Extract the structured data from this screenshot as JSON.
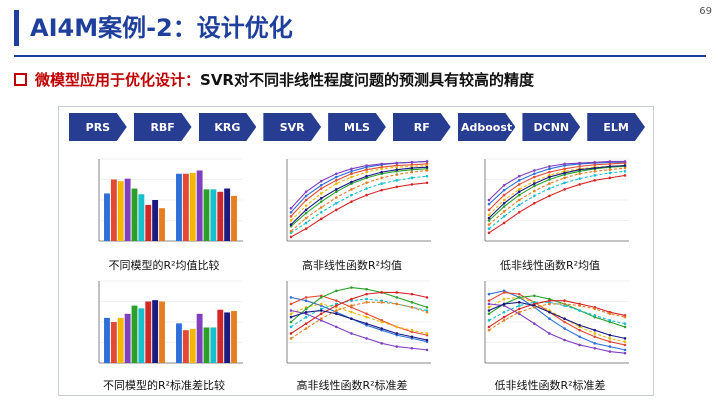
{
  "slide": {
    "title": "AI4M案例-2：设计优化",
    "page_number": "69",
    "subtitle_red": "微模型应用于优化设计：",
    "subtitle_black": "SVR对不同非线性程度问题的预测具有较高的精度"
  },
  "models": [
    "PRS",
    "RBF",
    "KRG",
    "SVR",
    "MLS",
    "RF",
    "Adboost",
    "DCNN",
    "ELM"
  ],
  "captions": {
    "bar_mean": "不同模型的R²均值比较",
    "line_high_mean": "高非线性函数R²均值",
    "line_low_mean": "低非线性函数R²均值",
    "bar_std": "不同模型的R²标准差比较",
    "line_high_std": "高非线性函数R²标准差",
    "line_low_std": "低非线性函数R²标准差"
  },
  "colors": {
    "brand_blue": "#1f3f9c",
    "button_blue": "#263d92",
    "accent_red": "#c00000",
    "series": [
      "#2e6fd8",
      "#e24a33",
      "#f2b705",
      "#7f3fbf",
      "#2ca02c",
      "#17becf",
      "#d62728",
      "#1a1a80",
      "#e67e22"
    ]
  },
  "chart_data": [
    {
      "type": "bar",
      "categories": [
        "",
        ""
      ],
      "ylim": [
        0,
        1
      ],
      "series": [
        {
          "values": [
            0.58,
            0.82
          ]
        },
        {
          "values": [
            0.75,
            0.82
          ]
        },
        {
          "values": [
            0.73,
            0.83
          ]
        },
        {
          "values": [
            0.76,
            0.86
          ]
        },
        {
          "values": [
            0.64,
            0.63
          ]
        },
        {
          "values": [
            0.57,
            0.63
          ]
        },
        {
          "values": [
            0.44,
            0.6
          ]
        },
        {
          "values": [
            0.5,
            0.64
          ]
        },
        {
          "values": [
            0.4,
            0.55
          ]
        }
      ]
    },
    {
      "type": "line",
      "x": [
        1,
        2,
        3,
        4,
        5,
        6,
        7,
        8,
        9,
        10
      ],
      "ylim": [
        0,
        1
      ],
      "series": [
        {
          "values": [
            0.35,
            0.55,
            0.68,
            0.78,
            0.85,
            0.9,
            0.93,
            0.95,
            0.96,
            0.97
          ]
        },
        {
          "values": [
            0.3,
            0.5,
            0.64,
            0.74,
            0.82,
            0.87,
            0.9,
            0.92,
            0.93,
            0.94
          ]
        },
        {
          "values": [
            0.25,
            0.43,
            0.58,
            0.7,
            0.78,
            0.84,
            0.88,
            0.9,
            0.91,
            0.92
          ]
        },
        {
          "values": [
            0.4,
            0.6,
            0.73,
            0.82,
            0.88,
            0.92,
            0.94,
            0.95,
            0.96,
            0.97
          ]
        },
        {
          "values": [
            0.18,
            0.34,
            0.48,
            0.6,
            0.7,
            0.77,
            0.82,
            0.85,
            0.87,
            0.88
          ]
        },
        {
          "values": [
            0.1,
            0.22,
            0.35,
            0.46,
            0.56,
            0.64,
            0.7,
            0.74,
            0.77,
            0.79
          ]
        },
        {
          "values": [
            0.05,
            0.15,
            0.27,
            0.38,
            0.48,
            0.56,
            0.62,
            0.66,
            0.69,
            0.71
          ]
        },
        {
          "values": [
            0.2,
            0.38,
            0.52,
            0.63,
            0.72,
            0.79,
            0.84,
            0.87,
            0.89,
            0.9
          ]
        },
        {
          "values": [
            0.12,
            0.28,
            0.41,
            0.53,
            0.63,
            0.71,
            0.77,
            0.81,
            0.84,
            0.86
          ]
        }
      ]
    },
    {
      "type": "line",
      "x": [
        1,
        2,
        3,
        4,
        5,
        6,
        7,
        8,
        9,
        10
      ],
      "ylim": [
        0,
        1
      ],
      "series": [
        {
          "values": [
            0.45,
            0.62,
            0.74,
            0.82,
            0.88,
            0.92,
            0.94,
            0.95,
            0.96,
            0.96
          ]
        },
        {
          "values": [
            0.38,
            0.56,
            0.69,
            0.78,
            0.84,
            0.88,
            0.91,
            0.93,
            0.94,
            0.95
          ]
        },
        {
          "values": [
            0.32,
            0.5,
            0.63,
            0.73,
            0.8,
            0.85,
            0.88,
            0.9,
            0.91,
            0.92
          ]
        },
        {
          "values": [
            0.5,
            0.68,
            0.79,
            0.86,
            0.91,
            0.94,
            0.95,
            0.96,
            0.97,
            0.97
          ]
        },
        {
          "values": [
            0.25,
            0.42,
            0.56,
            0.67,
            0.75,
            0.81,
            0.85,
            0.88,
            0.9,
            0.91
          ]
        },
        {
          "values": [
            0.15,
            0.3,
            0.44,
            0.55,
            0.64,
            0.71,
            0.76,
            0.8,
            0.83,
            0.85
          ]
        },
        {
          "values": [
            0.1,
            0.22,
            0.35,
            0.46,
            0.55,
            0.63,
            0.69,
            0.74,
            0.77,
            0.8
          ]
        },
        {
          "values": [
            0.28,
            0.46,
            0.6,
            0.7,
            0.78,
            0.83,
            0.87,
            0.89,
            0.91,
            0.92
          ]
        },
        {
          "values": [
            0.2,
            0.36,
            0.5,
            0.61,
            0.7,
            0.77,
            0.82,
            0.85,
            0.87,
            0.89
          ]
        }
      ]
    },
    {
      "type": "bar",
      "categories": [
        "",
        ""
      ],
      "ylim": [
        0,
        0.6
      ],
      "series": [
        {
          "values": [
            0.33,
            0.29
          ]
        },
        {
          "values": [
            0.3,
            0.24
          ]
        },
        {
          "values": [
            0.33,
            0.25
          ]
        },
        {
          "values": [
            0.36,
            0.36
          ]
        },
        {
          "values": [
            0.42,
            0.26
          ]
        },
        {
          "values": [
            0.4,
            0.26
          ]
        },
        {
          "values": [
            0.45,
            0.39
          ]
        },
        {
          "values": [
            0.46,
            0.37
          ]
        },
        {
          "values": [
            0.45,
            0.38
          ]
        }
      ]
    },
    {
      "type": "line",
      "x": [
        1,
        2,
        3,
        4,
        5,
        6,
        7,
        8,
        9,
        10
      ],
      "ylim": [
        0,
        0.5
      ],
      "series": [
        {
          "values": [
            0.4,
            0.38,
            0.35,
            0.31,
            0.27,
            0.23,
            0.2,
            0.17,
            0.15,
            0.13
          ]
        },
        {
          "values": [
            0.36,
            0.4,
            0.41,
            0.38,
            0.34,
            0.3,
            0.26,
            0.22,
            0.19,
            0.17
          ]
        },
        {
          "values": [
            0.3,
            0.34,
            0.36,
            0.34,
            0.31,
            0.28,
            0.25,
            0.22,
            0.2,
            0.18
          ]
        },
        {
          "values": [
            0.32,
            0.3,
            0.26,
            0.22,
            0.18,
            0.15,
            0.12,
            0.1,
            0.09,
            0.08
          ]
        },
        {
          "values": [
            0.25,
            0.33,
            0.4,
            0.44,
            0.46,
            0.45,
            0.43,
            0.4,
            0.37,
            0.34
          ]
        },
        {
          "values": [
            0.22,
            0.28,
            0.33,
            0.36,
            0.38,
            0.39,
            0.38,
            0.36,
            0.34,
            0.32
          ]
        },
        {
          "values": [
            0.18,
            0.24,
            0.3,
            0.35,
            0.39,
            0.42,
            0.43,
            0.43,
            0.42,
            0.4
          ]
        },
        {
          "values": [
            0.28,
            0.31,
            0.32,
            0.3,
            0.27,
            0.24,
            0.21,
            0.18,
            0.16,
            0.14
          ]
        },
        {
          "values": [
            0.15,
            0.21,
            0.27,
            0.32,
            0.35,
            0.37,
            0.37,
            0.36,
            0.34,
            0.31
          ]
        }
      ]
    },
    {
      "type": "line",
      "x": [
        1,
        2,
        3,
        4,
        5,
        6,
        7,
        8,
        9,
        10
      ],
      "ylim": [
        0,
        0.5
      ],
      "series": [
        {
          "values": [
            0.42,
            0.44,
            0.4,
            0.34,
            0.27,
            0.21,
            0.16,
            0.12,
            0.1,
            0.08
          ]
        },
        {
          "values": [
            0.38,
            0.43,
            0.42,
            0.37,
            0.31,
            0.25,
            0.2,
            0.16,
            0.13,
            0.11
          ]
        },
        {
          "values": [
            0.34,
            0.39,
            0.4,
            0.37,
            0.32,
            0.27,
            0.22,
            0.18,
            0.15,
            0.13
          ]
        },
        {
          "values": [
            0.36,
            0.35,
            0.3,
            0.24,
            0.18,
            0.14,
            0.11,
            0.09,
            0.07,
            0.06
          ]
        },
        {
          "values": [
            0.3,
            0.36,
            0.4,
            0.41,
            0.39,
            0.36,
            0.32,
            0.28,
            0.25,
            0.22
          ]
        },
        {
          "values": [
            0.26,
            0.31,
            0.35,
            0.37,
            0.37,
            0.35,
            0.32,
            0.29,
            0.26,
            0.24
          ]
        },
        {
          "values": [
            0.22,
            0.28,
            0.33,
            0.36,
            0.38,
            0.38,
            0.36,
            0.34,
            0.31,
            0.29
          ]
        },
        {
          "values": [
            0.32,
            0.36,
            0.37,
            0.35,
            0.31,
            0.27,
            0.23,
            0.2,
            0.17,
            0.15
          ]
        },
        {
          "values": [
            0.2,
            0.26,
            0.31,
            0.34,
            0.36,
            0.36,
            0.35,
            0.33,
            0.3,
            0.28
          ]
        }
      ]
    }
  ]
}
